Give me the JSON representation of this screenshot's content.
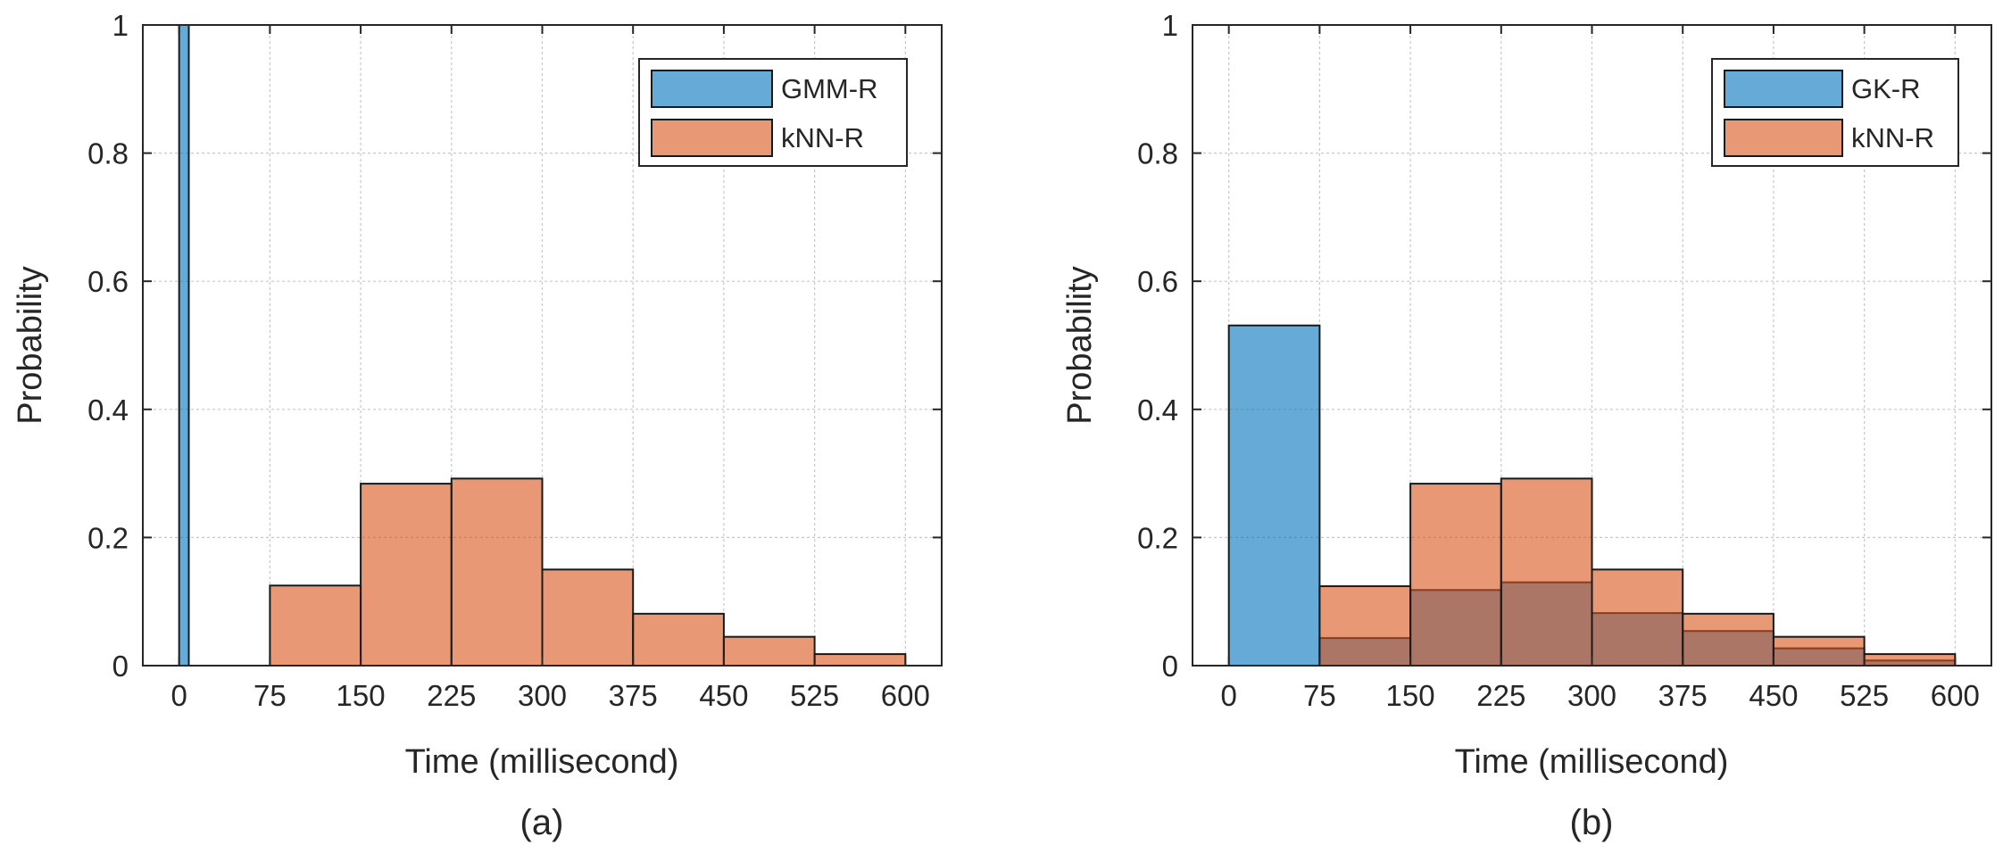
{
  "colors": {
    "blue": "#0072BD",
    "orange": "#D95319",
    "bar_alpha": 0.6
  },
  "chart_data": [
    {
      "type": "bar",
      "panel": "(a)",
      "xlabel": "Time (millisecond)",
      "ylabel": "Probability",
      "xlim": [
        -30,
        630
      ],
      "ylim": [
        0,
        1
      ],
      "x_ticks": [
        0,
        75,
        150,
        225,
        300,
        375,
        450,
        525,
        600
      ],
      "y_ticks": [
        0,
        0.2,
        0.4,
        0.6,
        0.8,
        1
      ],
      "y_tick_labels": [
        "0",
        "0.2",
        "0.4",
        "0.6",
        "0.8",
        "1"
      ],
      "grid": true,
      "legend_position": "top-right",
      "series": [
        {
          "name": "GMM-R",
          "color": "#0072BD",
          "bins": [
            {
              "start": 0,
              "end": 8,
              "value": 1.0
            }
          ]
        },
        {
          "name": "kNN-R",
          "color": "#D95319",
          "bins": [
            {
              "start": 0,
              "end": 75,
              "value": 0.0
            },
            {
              "start": 75,
              "end": 150,
              "value": 0.125
            },
            {
              "start": 150,
              "end": 225,
              "value": 0.284
            },
            {
              "start": 225,
              "end": 300,
              "value": 0.292
            },
            {
              "start": 300,
              "end": 375,
              "value": 0.15
            },
            {
              "start": 375,
              "end": 450,
              "value": 0.081
            },
            {
              "start": 450,
              "end": 525,
              "value": 0.045
            },
            {
              "start": 525,
              "end": 600,
              "value": 0.018
            }
          ]
        }
      ]
    },
    {
      "type": "bar",
      "panel": "(b)",
      "xlabel": "Time (millisecond)",
      "ylabel": "Probability",
      "xlim": [
        -30,
        630
      ],
      "ylim": [
        0,
        1
      ],
      "x_ticks": [
        0,
        75,
        150,
        225,
        300,
        375,
        450,
        525,
        600
      ],
      "y_ticks": [
        0,
        0.2,
        0.4,
        0.6,
        0.8,
        1
      ],
      "y_tick_labels": [
        "0",
        "0.2",
        "0.4",
        "0.6",
        "0.8",
        "1"
      ],
      "grid": true,
      "legend_position": "top-right",
      "series": [
        {
          "name": "GK-R",
          "color": "#0072BD",
          "bins": [
            {
              "start": 0,
              "end": 75,
              "value": 0.531
            },
            {
              "start": 75,
              "end": 150,
              "value": 0.043
            },
            {
              "start": 150,
              "end": 225,
              "value": 0.118
            },
            {
              "start": 225,
              "end": 300,
              "value": 0.13
            },
            {
              "start": 300,
              "end": 375,
              "value": 0.082
            },
            {
              "start": 375,
              "end": 450,
              "value": 0.054
            },
            {
              "start": 450,
              "end": 525,
              "value": 0.027
            },
            {
              "start": 525,
              "end": 600,
              "value": 0.008
            }
          ]
        },
        {
          "name": "kNN-R",
          "color": "#D95319",
          "bins": [
            {
              "start": 75,
              "end": 150,
              "value": 0.124
            },
            {
              "start": 150,
              "end": 225,
              "value": 0.284
            },
            {
              "start": 225,
              "end": 300,
              "value": 0.292
            },
            {
              "start": 300,
              "end": 375,
              "value": 0.15
            },
            {
              "start": 375,
              "end": 450,
              "value": 0.081
            },
            {
              "start": 450,
              "end": 525,
              "value": 0.045
            },
            {
              "start": 525,
              "end": 600,
              "value": 0.018
            }
          ]
        }
      ]
    }
  ]
}
